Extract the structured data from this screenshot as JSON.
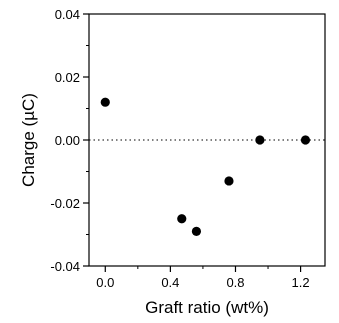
{
  "chart_data": {
    "type": "scatter",
    "xlabel": "Graft ratio (wt%)",
    "ylabel": "Charge (µC)",
    "xlim": [
      -0.1,
      1.35
    ],
    "ylim": [
      -0.04,
      0.04
    ],
    "x_ticks": [
      0.0,
      0.4,
      0.8,
      1.2
    ],
    "x_tick_labels": [
      "0.0",
      "0.4",
      "0.8",
      "1.2"
    ],
    "y_ticks": [
      -0.04,
      -0.02,
      0.0,
      0.02,
      0.04
    ],
    "y_tick_labels": [
      "-0.04",
      "-0.02",
      "0.00",
      "0.02",
      "0.04"
    ],
    "reference_line": {
      "y": 0.0,
      "style": "dotted"
    },
    "grid": false,
    "legend": "none",
    "series": [
      {
        "marker": "filled-circle",
        "color": "#000000",
        "points": [
          {
            "x": 0.0,
            "y": 0.012
          },
          {
            "x": 0.47,
            "y": -0.025
          },
          {
            "x": 0.56,
            "y": -0.029
          },
          {
            "x": 0.76,
            "y": -0.013
          },
          {
            "x": 0.95,
            "y": 0.0
          },
          {
            "x": 1.23,
            "y": 0.0
          }
        ]
      }
    ]
  }
}
